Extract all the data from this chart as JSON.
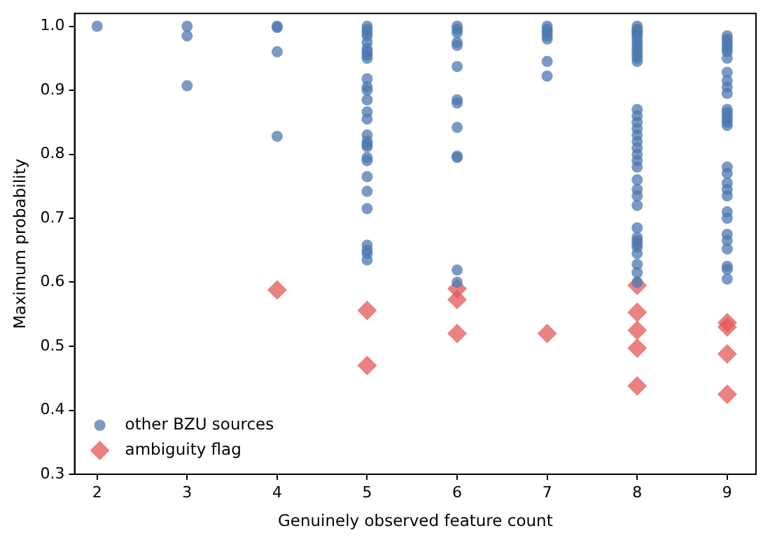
{
  "chart_data": {
    "type": "scatter",
    "xlabel": "Genuinely observed feature count",
    "ylabel": "Maximum probability",
    "xlim": [
      1.75,
      9.32
    ],
    "xticks": [
      2,
      3,
      4,
      5,
      6,
      7,
      8,
      9
    ],
    "ylim": [
      0.3,
      1.02
    ],
    "yticks": [
      0.3,
      0.4,
      0.5,
      0.6,
      0.7,
      0.8,
      0.9,
      {
        "value": 1.0,
        "label": "1.0"
      }
    ],
    "grid": false,
    "legend": "bottom left",
    "series": [
      {
        "name": "other BZU sources",
        "color": "#4c78b0",
        "marker": "circle",
        "x": [
          2,
          3,
          3,
          3,
          4,
          4,
          4,
          4,
          5,
          5,
          5,
          5,
          5,
          5,
          5,
          5,
          5,
          5,
          5,
          5,
          5,
          5,
          5,
          5,
          5,
          5,
          5,
          5,
          5,
          5,
          5,
          5,
          5,
          5,
          5,
          5,
          6,
          6,
          6,
          6,
          6,
          6,
          6,
          6,
          6,
          6,
          6,
          6,
          6,
          7,
          7,
          7,
          7,
          7,
          7,
          7,
          8,
          8,
          8,
          8,
          8,
          8,
          8,
          8,
          8,
          8,
          8,
          8,
          8,
          8,
          8,
          8,
          8,
          8,
          8,
          8,
          8,
          8,
          8,
          8,
          8,
          8,
          8,
          8,
          8,
          8,
          8,
          8,
          8,
          8,
          8,
          8,
          8,
          9,
          9,
          9,
          9,
          9,
          9,
          9,
          9,
          9,
          9,
          9,
          9,
          9,
          9,
          9,
          9,
          9,
          9,
          9,
          9,
          9,
          9,
          9,
          9,
          9,
          9,
          9,
          9,
          9,
          9
        ],
        "values": [
          1.0,
          1.0,
          0.985,
          0.907,
          1.0,
          0.998,
          0.96,
          0.828,
          1.0,
          0.995,
          0.99,
          0.985,
          0.975,
          0.965,
          0.96,
          0.955,
          0.95,
          0.918,
          0.905,
          0.9,
          0.885,
          0.866,
          0.855,
          0.83,
          0.82,
          0.815,
          0.812,
          0.795,
          0.79,
          0.765,
          0.742,
          0.715,
          0.658,
          0.65,
          0.645,
          0.635,
          1.0,
          0.995,
          0.99,
          0.975,
          0.97,
          0.937,
          0.885,
          0.88,
          0.842,
          0.797,
          0.795,
          0.619,
          0.6,
          1.0,
          0.995,
          0.99,
          0.985,
          0.98,
          0.945,
          0.922,
          1.0,
          0.995,
          0.99,
          0.985,
          0.98,
          0.975,
          0.97,
          0.965,
          0.96,
          0.955,
          0.95,
          0.945,
          0.87,
          0.86,
          0.85,
          0.84,
          0.83,
          0.82,
          0.81,
          0.8,
          0.79,
          0.78,
          0.76,
          0.745,
          0.735,
          0.72,
          0.685,
          0.67,
          0.665,
          0.66,
          0.655,
          0.645,
          0.628,
          0.615,
          0.6,
          0.995,
          0.99,
          0.985,
          0.98,
          0.975,
          0.97,
          0.965,
          0.96,
          0.95,
          0.928,
          0.915,
          0.905,
          0.895,
          0.87,
          0.865,
          0.86,
          0.855,
          0.85,
          0.845,
          0.78,
          0.77,
          0.755,
          0.745,
          0.735,
          0.71,
          0.7,
          0.675,
          0.665,
          0.652,
          0.625,
          0.62,
          0.605
        ]
      },
      {
        "name": "ambiguity flag",
        "color": "#e45756",
        "marker": "diamond",
        "x": [
          4,
          5,
          5,
          6,
          6,
          6,
          7,
          8,
          8,
          8,
          8,
          8,
          9,
          9,
          9,
          9
        ],
        "values": [
          0.588,
          0.556,
          0.47,
          0.59,
          0.573,
          0.52,
          0.52,
          0.595,
          0.553,
          0.525,
          0.497,
          0.438,
          0.537,
          0.53,
          0.488,
          0.425
        ]
      }
    ]
  }
}
